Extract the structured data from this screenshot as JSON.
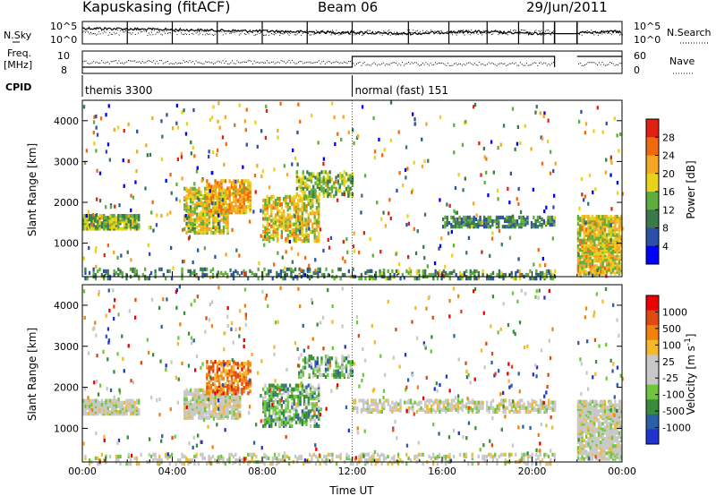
{
  "header": {
    "station": "Kapuskasing (fitACF)",
    "beam": "Beam 06",
    "date": "29/Jun/2011"
  },
  "left_labels": {
    "nsky": "N.Sky",
    "freq_line1": "Freq.",
    "freq_line2": "[MHz]",
    "cpid": "CPID"
  },
  "right_labels": {
    "nsearch": "N.Search",
    "nave": "Nave"
  },
  "noise_axis": {
    "left_top": "10^5",
    "left_bottom": "10^0",
    "right_top": "10^5",
    "right_bottom": "10^0"
  },
  "freq_axis": {
    "left_top": "10",
    "left_bottom": "8",
    "right_top": "60",
    "right_bottom": "0"
  },
  "cpid_segments": [
    {
      "label": "themis 3300",
      "start_h": 0,
      "end_h": 12
    },
    {
      "label": "normal (fast) 151",
      "start_h": 12,
      "end_h": 24
    }
  ],
  "data_gaps_h": [
    [
      4.0,
      4.05
    ],
    [
      21.0,
      22.0
    ]
  ],
  "colors": {
    "power": [
      "#0000ff",
      "#2c4fa8",
      "#3a7a4a",
      "#5fae3c",
      "#e8d21a",
      "#f5a623",
      "#f06a0d",
      "#e02010"
    ],
    "velocity": [
      "#2233cc",
      "#2c5fa8",
      "#3a8c3a",
      "#6cc83a",
      "#c8c8c8",
      "#c8c8c8",
      "#f5b82a",
      "#f0820d",
      "#e04a10",
      "#ee0000"
    ],
    "scatter_ground": "#c8c8c8"
  },
  "chart_data": [
    {
      "type": "heatmap",
      "name": "power",
      "xlabel": "",
      "ylabel": "Slant Range [km]",
      "xlim": [
        0,
        24
      ],
      "ylim": [
        180,
        4500
      ],
      "x_ticks": [
        "00:00",
        "04:00",
        "08:00",
        "12:00",
        "16:00",
        "20:00",
        "00:00"
      ],
      "y_ticks": [
        1000,
        2000,
        3000,
        4000
      ],
      "colorbar": {
        "label": "Power [dB]",
        "ticks": [
          4,
          8,
          12,
          16,
          20,
          24,
          28
        ],
        "range": [
          0,
          30
        ]
      },
      "echo_regions": [
        {
          "t0": 0.0,
          "t1": 2.5,
          "r0": 1400,
          "r1": 1750,
          "level": 0.45,
          "density": 0.8
        },
        {
          "t0": 4.5,
          "t1": 6.5,
          "r0": 1300,
          "r1": 2400,
          "level": 0.55,
          "density": 0.6
        },
        {
          "t0": 5.5,
          "t1": 7.5,
          "r0": 1800,
          "r1": 2600,
          "level": 0.7,
          "density": 0.6
        },
        {
          "t0": 8.0,
          "t1": 10.5,
          "r0": 1100,
          "r1": 2200,
          "level": 0.6,
          "density": 0.5
        },
        {
          "t0": 9.5,
          "t1": 12.0,
          "r0": 2200,
          "r1": 2800,
          "level": 0.45,
          "density": 0.4
        },
        {
          "t0": 12.0,
          "t1": 21.0,
          "r0": 180,
          "r1": 400,
          "level": 0.35,
          "density": 0.35
        },
        {
          "t0": 16.0,
          "t1": 21.0,
          "r0": 1450,
          "r1": 1700,
          "level": 0.3,
          "density": 0.55
        },
        {
          "t0": 22.0,
          "t1": 24.0,
          "r0": 300,
          "r1": 1700,
          "level": 0.6,
          "density": 0.7
        },
        {
          "t0": 0.0,
          "t1": 12.0,
          "r0": 180,
          "r1": 450,
          "level": 0.3,
          "density": 0.25
        }
      ]
    },
    {
      "type": "heatmap",
      "name": "velocity",
      "xlabel": "Time UT",
      "ylabel": "Slant Range [km]",
      "xlim": [
        0,
        24
      ],
      "ylim": [
        180,
        4500
      ],
      "x_ticks": [
        "00:00",
        "04:00",
        "08:00",
        "12:00",
        "16:00",
        "20:00",
        "00:00"
      ],
      "y_ticks": [
        1000,
        2000,
        3000,
        4000
      ],
      "colorbar": {
        "label": "Velocity [m s^-1]",
        "ticks": [
          "1000",
          "500",
          "100",
          "25",
          "-25",
          "-100",
          "-500",
          "-1000"
        ]
      },
      "echo_regions": [
        {
          "t0": 0.0,
          "t1": 2.5,
          "r0": 1400,
          "r1": 1750,
          "level": 0.5,
          "density": 0.8
        },
        {
          "t0": 4.5,
          "t1": 7.0,
          "r0": 1300,
          "r1": 2000,
          "level": 0.5,
          "density": 0.7
        },
        {
          "t0": 5.5,
          "t1": 7.5,
          "r0": 1900,
          "r1": 2700,
          "level": 0.8,
          "density": 0.5
        },
        {
          "t0": 8.0,
          "t1": 10.5,
          "r0": 1100,
          "r1": 2100,
          "level": 0.3,
          "density": 0.5
        },
        {
          "t0": 9.5,
          "t1": 12.0,
          "r0": 2300,
          "r1": 2800,
          "level": 0.3,
          "density": 0.4
        },
        {
          "t0": 12.0,
          "t1": 21.0,
          "r0": 1450,
          "r1": 1750,
          "level": 0.5,
          "density": 0.45
        },
        {
          "t0": 22.0,
          "t1": 24.0,
          "r0": 300,
          "r1": 1700,
          "level": 0.5,
          "density": 0.7
        },
        {
          "t0": 0.0,
          "t1": 21.0,
          "r0": 180,
          "r1": 450,
          "level": 0.5,
          "density": 0.25
        }
      ]
    }
  ]
}
